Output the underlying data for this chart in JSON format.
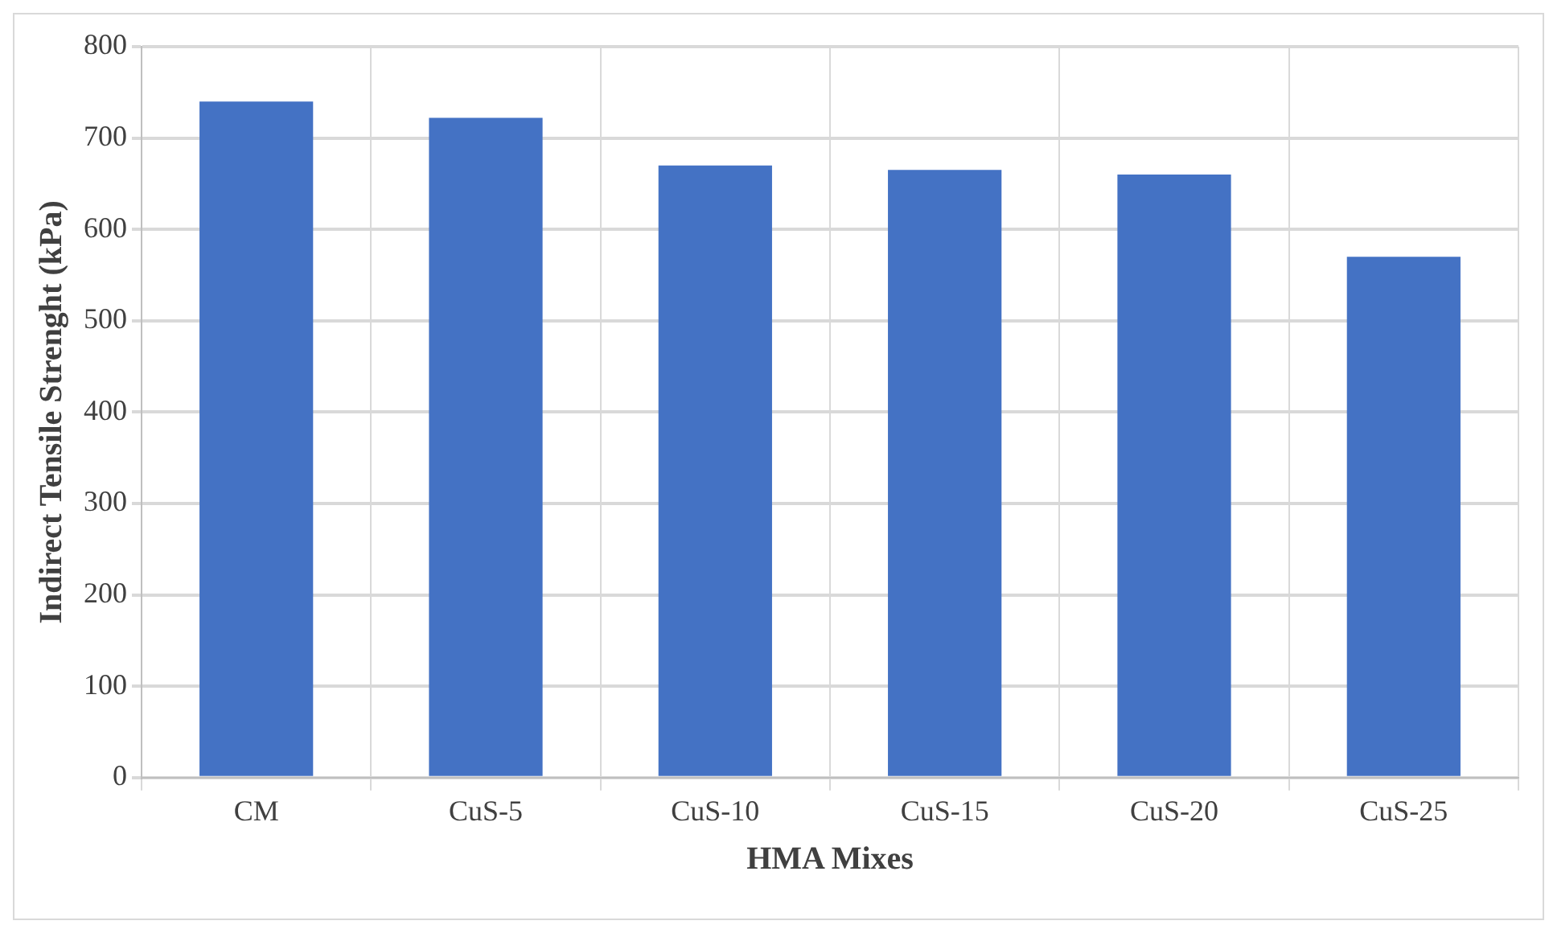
{
  "chart_data": {
    "type": "bar",
    "categories": [
      "CM",
      "CuS-5",
      "CuS-10",
      "CuS-15",
      "CuS-20",
      "CuS-25"
    ],
    "values": [
      740,
      722,
      670,
      665,
      660,
      570
    ],
    "color": "#4472c4",
    "xlabel": "HMA Mixes",
    "ylabel": "Indirect Tensile Strenght (kPa)",
    "ylim": [
      0,
      800
    ],
    "yticks": [
      0,
      100,
      200,
      300,
      400,
      500,
      600,
      700,
      800
    ],
    "grid": true
  }
}
